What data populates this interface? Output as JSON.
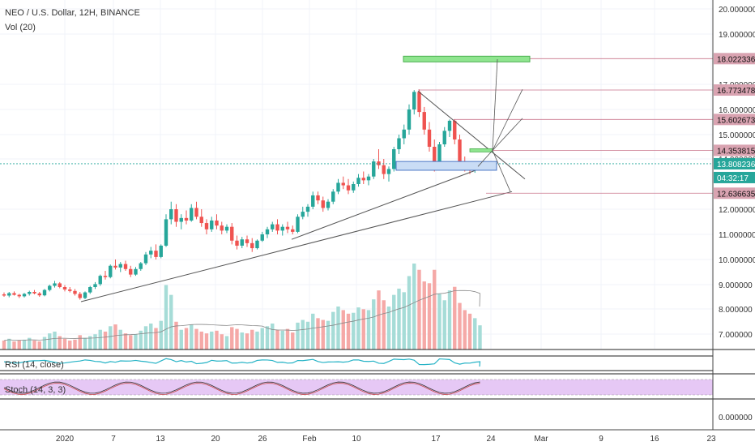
{
  "header": {
    "symbol_line": "NEO / U.S. Dollar, 12H, BINANCE",
    "volume_label": "Vol (20)",
    "rsi_label": "RSI (14, close)",
    "stoch_label": "Stoch (14, 3, 3)"
  },
  "colors": {
    "up": "#26a69a",
    "down": "#ef5350",
    "volume_up": "#a6dcd7",
    "volume_down": "#f5a9a7",
    "rsi_line": "#26b3c6",
    "stoch_band": "#e6c8f5",
    "price_line": "#26a69a",
    "target_tag": "#d9a3b1",
    "target_green": "#8fe58f"
  },
  "axis": {
    "y_labels": [
      "20.000000",
      "19.000000",
      "17.000000",
      "16.000000",
      "15.000000",
      "14.000000",
      "12.000000",
      "11.000000",
      "10.000000",
      "9.000000",
      "8.000000",
      "7.000000",
      "0.000000"
    ],
    "x_labels": [
      "2020",
      "7",
      "13",
      "20",
      "26",
      "Feb",
      "10",
      "17",
      "24",
      "Mar",
      "9",
      "16",
      "23"
    ]
  },
  "price_tags": [
    {
      "label": "18.022336",
      "kind": "target"
    },
    {
      "label": "16.773478",
      "kind": "target"
    },
    {
      "label": "15.602673",
      "kind": "target"
    },
    {
      "label": "14.353815",
      "kind": "target"
    },
    {
      "label": "13.808236",
      "kind": "current"
    },
    {
      "label": "04:32:17",
      "kind": "countdown"
    },
    {
      "label": "12.636635",
      "kind": "target"
    }
  ],
  "chart_data": {
    "type": "candlestick",
    "title": "NEO / U.S. Dollar, 12H, BINANCE",
    "x_range_labels": [
      "2020",
      "7",
      "13",
      "20",
      "26",
      "Feb",
      "10",
      "17",
      "24",
      "Mar",
      "9",
      "16",
      "23"
    ],
    "ylim": [
      7.0,
      20.0
    ],
    "current_price": 13.808236,
    "candles_start": "2019-12-27",
    "candles_interval": "12H",
    "candles": [
      [
        8.6,
        8.68,
        8.5,
        8.55
      ],
      [
        8.55,
        8.7,
        8.48,
        8.65
      ],
      [
        8.65,
        8.72,
        8.55,
        8.58
      ],
      [
        8.58,
        8.62,
        8.45,
        8.52
      ],
      [
        8.52,
        8.66,
        8.47,
        8.62
      ],
      [
        8.62,
        8.75,
        8.55,
        8.7
      ],
      [
        8.7,
        8.78,
        8.6,
        8.64
      ],
      [
        8.64,
        8.7,
        8.5,
        8.56
      ],
      [
        8.56,
        8.82,
        8.52,
        8.78
      ],
      [
        8.78,
        9.0,
        8.72,
        8.95
      ],
      [
        8.95,
        9.15,
        8.88,
        9.05
      ],
      [
        9.05,
        9.1,
        8.85,
        8.9
      ],
      [
        8.9,
        8.98,
        8.72,
        8.8
      ],
      [
        8.8,
        8.9,
        8.68,
        8.74
      ],
      [
        8.74,
        8.82,
        8.55,
        8.62
      ],
      [
        8.62,
        8.7,
        8.38,
        8.45
      ],
      [
        8.45,
        8.72,
        8.4,
        8.68
      ],
      [
        8.68,
        8.95,
        8.62,
        8.9
      ],
      [
        8.9,
        9.1,
        8.82,
        9.02
      ],
      [
        9.02,
        9.4,
        8.95,
        9.35
      ],
      [
        9.35,
        9.55,
        9.2,
        9.3
      ],
      [
        9.3,
        9.8,
        9.25,
        9.75
      ],
      [
        9.75,
        10.0,
        9.6,
        9.68
      ],
      [
        9.68,
        9.9,
        9.5,
        9.82
      ],
      [
        9.82,
        9.95,
        9.55,
        9.62
      ],
      [
        9.62,
        9.75,
        9.3,
        9.4
      ],
      [
        9.4,
        9.7,
        9.35,
        9.62
      ],
      [
        9.62,
        9.9,
        9.55,
        9.85
      ],
      [
        9.85,
        10.3,
        9.78,
        10.2
      ],
      [
        10.2,
        10.5,
        10.05,
        10.35
      ],
      [
        10.35,
        10.6,
        10.0,
        10.1
      ],
      [
        10.1,
        10.6,
        10.05,
        10.55
      ],
      [
        10.55,
        11.8,
        10.5,
        11.6
      ],
      [
        11.6,
        12.3,
        11.4,
        12.0
      ],
      [
        12.0,
        12.2,
        11.3,
        11.5
      ],
      [
        11.5,
        11.8,
        11.2,
        11.65
      ],
      [
        11.65,
        11.95,
        11.4,
        11.55
      ],
      [
        11.55,
        12.2,
        11.5,
        12.05
      ],
      [
        12.05,
        12.3,
        11.6,
        11.7
      ],
      [
        11.7,
        12.0,
        11.3,
        11.45
      ],
      [
        11.45,
        11.6,
        11.0,
        11.2
      ],
      [
        11.2,
        11.7,
        11.1,
        11.55
      ],
      [
        11.55,
        11.8,
        11.2,
        11.35
      ],
      [
        11.35,
        11.5,
        11.0,
        11.15
      ],
      [
        11.15,
        11.4,
        11.05,
        11.3
      ],
      [
        11.3,
        11.45,
        10.6,
        10.75
      ],
      [
        10.75,
        10.95,
        10.4,
        10.55
      ],
      [
        10.55,
        10.9,
        10.45,
        10.8
      ],
      [
        10.8,
        10.95,
        10.5,
        10.65
      ],
      [
        10.65,
        10.85,
        10.3,
        10.45
      ],
      [
        10.45,
        10.8,
        10.4,
        10.75
      ],
      [
        10.75,
        11.1,
        10.7,
        11.0
      ],
      [
        11.0,
        11.3,
        10.85,
        11.2
      ],
      [
        11.2,
        11.5,
        11.1,
        11.4
      ],
      [
        11.4,
        11.6,
        11.0,
        11.15
      ],
      [
        11.15,
        11.4,
        10.95,
        11.3
      ],
      [
        11.3,
        11.5,
        11.05,
        11.2
      ],
      [
        11.2,
        11.35,
        11.0,
        11.1
      ],
      [
        11.1,
        11.8,
        11.05,
        11.7
      ],
      [
        11.7,
        12.1,
        11.6,
        11.9
      ],
      [
        11.9,
        12.2,
        11.7,
        12.1
      ],
      [
        12.1,
        12.7,
        12.0,
        12.55
      ],
      [
        12.55,
        12.7,
        12.2,
        12.35
      ],
      [
        12.35,
        12.5,
        11.9,
        12.05
      ],
      [
        12.05,
        12.4,
        11.95,
        12.3
      ],
      [
        12.3,
        12.8,
        12.2,
        12.7
      ],
      [
        12.7,
        13.2,
        12.6,
        13.05
      ],
      [
        13.05,
        13.3,
        12.8,
        12.95
      ],
      [
        12.95,
        13.2,
        12.6,
        12.75
      ],
      [
        12.75,
        13.1,
        12.65,
        13.0
      ],
      [
        13.0,
        13.4,
        12.9,
        13.25
      ],
      [
        13.25,
        13.5,
        13.0,
        13.15
      ],
      [
        13.15,
        13.4,
        12.95,
        13.3
      ],
      [
        13.3,
        14.0,
        13.2,
        13.9
      ],
      [
        13.9,
        14.4,
        13.6,
        13.75
      ],
      [
        13.75,
        14.0,
        13.2,
        13.4
      ],
      [
        13.4,
        13.7,
        13.1,
        13.6
      ],
      [
        13.6,
        14.5,
        13.5,
        14.4
      ],
      [
        14.4,
        15.0,
        14.2,
        14.85
      ],
      [
        14.85,
        15.4,
        14.6,
        15.2
      ],
      [
        15.2,
        16.2,
        15.0,
        16.0
      ],
      [
        16.0,
        16.77,
        15.8,
        16.7
      ],
      [
        16.7,
        16.8,
        15.7,
        15.9
      ],
      [
        15.9,
        16.1,
        15.0,
        15.2
      ],
      [
        15.2,
        15.5,
        14.3,
        14.5
      ],
      [
        14.5,
        14.8,
        13.5,
        13.7
      ],
      [
        13.7,
        14.7,
        13.6,
        14.6
      ],
      [
        14.6,
        15.3,
        14.5,
        15.15
      ],
      [
        15.15,
        15.6,
        14.9,
        15.55
      ],
      [
        15.55,
        15.6,
        14.6,
        14.8
      ],
      [
        14.8,
        15.0,
        13.7,
        13.85
      ],
      [
        13.85,
        14.1,
        13.5,
        13.65
      ],
      [
        13.65,
        13.9,
        13.4,
        13.55
      ],
      [
        13.55,
        13.8,
        13.45,
        13.72
      ],
      [
        13.72,
        13.9,
        13.55,
        13.81
      ]
    ],
    "volume_ylabel": "",
    "volume_values": [
      1,
      1.2,
      0.9,
      1,
      1.1,
      1.3,
      1,
      0.9,
      1.4,
      1.8,
      2,
      1.5,
      1.2,
      1,
      1.1,
      1.6,
      1.3,
      1.5,
      1.7,
      2.2,
      2,
      2.6,
      2.8,
      2.2,
      1.8,
      1.6,
      1.7,
      2.1,
      2.6,
      2.9,
      2.4,
      3.2,
      7.2,
      6.1,
      3.1,
      2.2,
      2.4,
      2.8,
      2.3,
      2,
      1.8,
      2,
      2.1,
      1.7,
      1.5,
      2.5,
      2.3,
      1.9,
      1.8,
      2.2,
      2,
      2.4,
      2.6,
      2.9,
      2.2,
      2.1,
      2.3,
      1.9,
      3,
      3.3,
      3.1,
      4,
      3.5,
      3.3,
      3.2,
      4.2,
      4.8,
      4.4,
      4,
      4.1,
      4.7,
      4.5,
      4.4,
      5.6,
      6.6,
      5.5,
      4.8,
      6.1,
      6.8,
      6.4,
      8.2,
      9.6,
      8.9,
      7.6,
      7.4,
      8.9,
      6.2,
      5.5,
      6.6,
      7,
      5.2,
      4.4,
      4,
      3.5,
      2.7
    ],
    "annotations": {
      "uptrend_line": [
        [
          8.3,
          "2020-01-02"
        ],
        [
          12.7,
          "2020-02-23"
        ]
      ],
      "triangle_upper": [
        [
          16.73,
          "2020-02-14"
        ],
        [
          13.0,
          "2020-02-25"
        ]
      ],
      "triangle_lower": [
        [
          10.8,
          "2020-01-30"
        ],
        [
          13.7,
          "2020-02-23"
        ]
      ],
      "support_box": [
        13.55,
        13.9
      ],
      "target_levels": [
        18.022336,
        16.773478,
        15.602673,
        14.353815,
        12.636635
      ]
    }
  }
}
